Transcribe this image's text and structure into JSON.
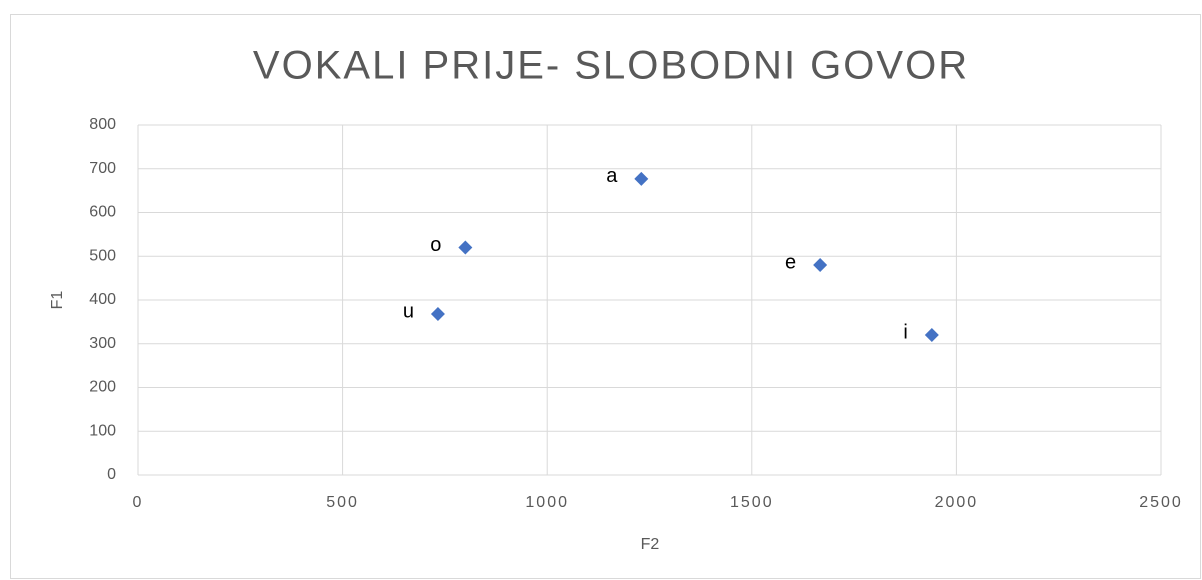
{
  "chart_data": {
    "type": "scatter",
    "title": "VOKALI PRIJE- SLOBODNI GOVOR",
    "x_label": "F2",
    "y_label": "F1",
    "series": [
      {
        "color": "#4472c4",
        "x": [
          1230,
          800,
          1667,
          733,
          1940
        ],
        "values": [
          677,
          520,
          480,
          368,
          320
        ],
        "point_labels": [
          "a",
          "o",
          "e",
          "u",
          "i"
        ]
      }
    ],
    "xlim": [
      0,
      2500
    ],
    "xticks": [
      0,
      500,
      1000,
      1500,
      2000,
      2500
    ],
    "ylim": [
      0,
      800
    ],
    "yticks": [
      0,
      100,
      200,
      300,
      400,
      500,
      600,
      700,
      800
    ],
    "grid": true
  }
}
